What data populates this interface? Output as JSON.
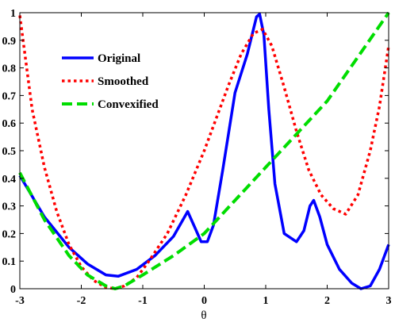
{
  "chart_data": {
    "type": "line",
    "xlabel": "θ",
    "ylabel": "",
    "xlim": [
      -3,
      3
    ],
    "ylim": [
      0,
      1
    ],
    "xticks": [
      "-3",
      "-2",
      "-1",
      "0",
      "1",
      "2",
      "3"
    ],
    "yticks": [
      "0",
      "0.1",
      "0.2",
      "0.3",
      "0.4",
      "0.5",
      "0.6",
      "0.7",
      "0.8",
      "0.9",
      "1"
    ],
    "grid": false,
    "legend_position": "top-left",
    "series": [
      {
        "name": "Original",
        "color": "#0000ff",
        "style": "solid",
        "x": [
          -3.0,
          -2.6,
          -2.2,
          -1.9,
          -1.6,
          -1.4,
          -1.1,
          -0.8,
          -0.5,
          -0.27,
          -0.15,
          -0.05,
          0.05,
          0.15,
          0.3,
          0.5,
          0.7,
          0.85,
          0.9,
          0.97,
          1.05,
          1.15,
          1.3,
          1.5,
          1.62,
          1.72,
          1.78,
          1.88,
          2.0,
          2.2,
          2.4,
          2.55,
          2.7,
          2.85,
          3.0
        ],
        "y": [
          0.41,
          0.26,
          0.15,
          0.09,
          0.05,
          0.045,
          0.07,
          0.12,
          0.19,
          0.28,
          0.22,
          0.17,
          0.17,
          0.23,
          0.43,
          0.71,
          0.85,
          0.985,
          0.995,
          0.92,
          0.65,
          0.38,
          0.2,
          0.17,
          0.21,
          0.3,
          0.32,
          0.26,
          0.16,
          0.07,
          0.02,
          0.0,
          0.01,
          0.07,
          0.16
        ]
      },
      {
        "name": "Smoothed",
        "color": "#ff0000",
        "style": "dotted",
        "x": [
          -3.0,
          -2.8,
          -2.6,
          -2.4,
          -2.2,
          -2.0,
          -1.8,
          -1.6,
          -1.45,
          -1.3,
          -1.1,
          -0.9,
          -0.6,
          -0.3,
          0.0,
          0.2,
          0.4,
          0.6,
          0.8,
          0.95,
          1.1,
          1.3,
          1.5,
          1.7,
          1.9,
          2.1,
          2.3,
          2.5,
          2.7,
          2.85,
          3.0
        ],
        "y": [
          0.99,
          0.65,
          0.44,
          0.28,
          0.16,
          0.08,
          0.03,
          0.005,
          0.0,
          0.01,
          0.04,
          0.1,
          0.2,
          0.34,
          0.5,
          0.62,
          0.74,
          0.85,
          0.925,
          0.94,
          0.88,
          0.73,
          0.57,
          0.43,
          0.34,
          0.29,
          0.27,
          0.34,
          0.5,
          0.66,
          0.88
        ]
      },
      {
        "name": "Convexified",
        "color": "#00dd00",
        "style": "dashed",
        "x": [
          -3.0,
          -2.6,
          -2.2,
          -1.9,
          -1.6,
          -1.45,
          -1.3,
          -1.0,
          -0.5,
          0.0,
          0.5,
          1.0,
          1.5,
          2.0,
          2.5,
          3.0
        ],
        "y": [
          0.42,
          0.25,
          0.12,
          0.05,
          0.01,
          0.0,
          0.01,
          0.05,
          0.12,
          0.2,
          0.32,
          0.44,
          0.56,
          0.68,
          0.84,
          1.0
        ]
      }
    ]
  }
}
